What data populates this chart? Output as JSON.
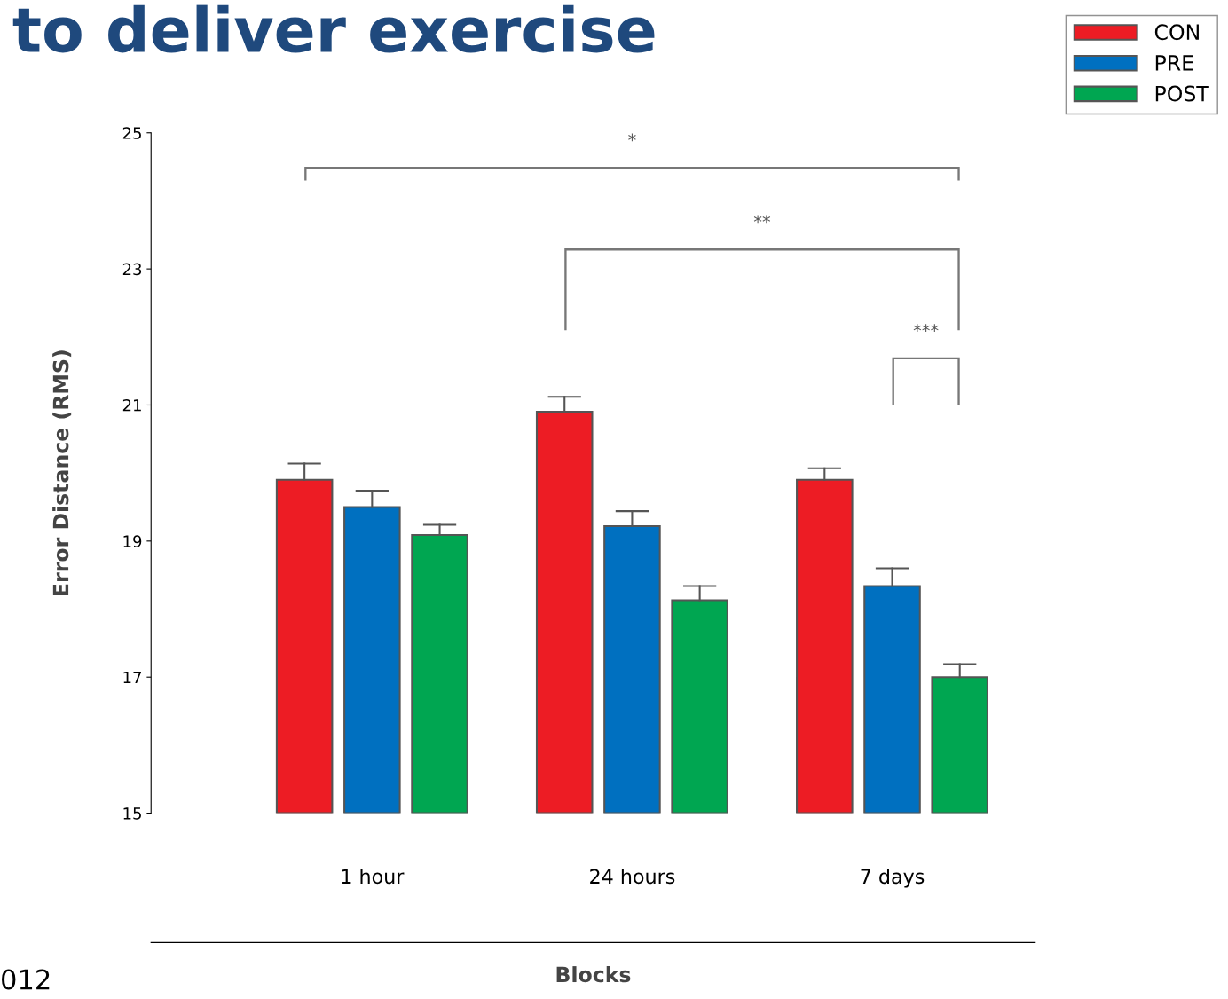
{
  "chart_data": {
    "type": "bar",
    "title": "to deliver exercise",
    "xlabel": "Blocks",
    "ylabel": "Error Distance (RMS)",
    "categories": [
      "1 hour",
      "24 hours",
      "7 days"
    ],
    "series": [
      {
        "name": "CON",
        "color": "#ed1c24",
        "values": [
          19.9,
          20.9,
          19.9
        ],
        "errors": [
          [
            19.9,
            20.14
          ],
          [
            20.9,
            21.12
          ],
          [
            19.9,
            20.07
          ]
        ]
      },
      {
        "name": "PRE",
        "color": "#0070c0",
        "values": [
          19.5,
          19.22,
          18.34
        ],
        "errors": [
          [
            19.5,
            19.74
          ],
          [
            19.22,
            19.44
          ],
          [
            18.34,
            18.6
          ]
        ]
      },
      {
        "name": "POST",
        "color": "#00a651",
        "values": [
          19.09,
          18.13,
          17.0
        ],
        "errors": [
          [
            19.09,
            19.24
          ],
          [
            18.13,
            18.34
          ],
          [
            17.0,
            17.19
          ]
        ]
      }
    ],
    "ylim": [
      15,
      25
    ],
    "yticks": [
      15,
      17,
      19,
      21,
      23,
      25
    ],
    "grid": false,
    "legend": "top right",
    "annotations": [
      "*",
      "**",
      "***",
      "012"
    ]
  }
}
